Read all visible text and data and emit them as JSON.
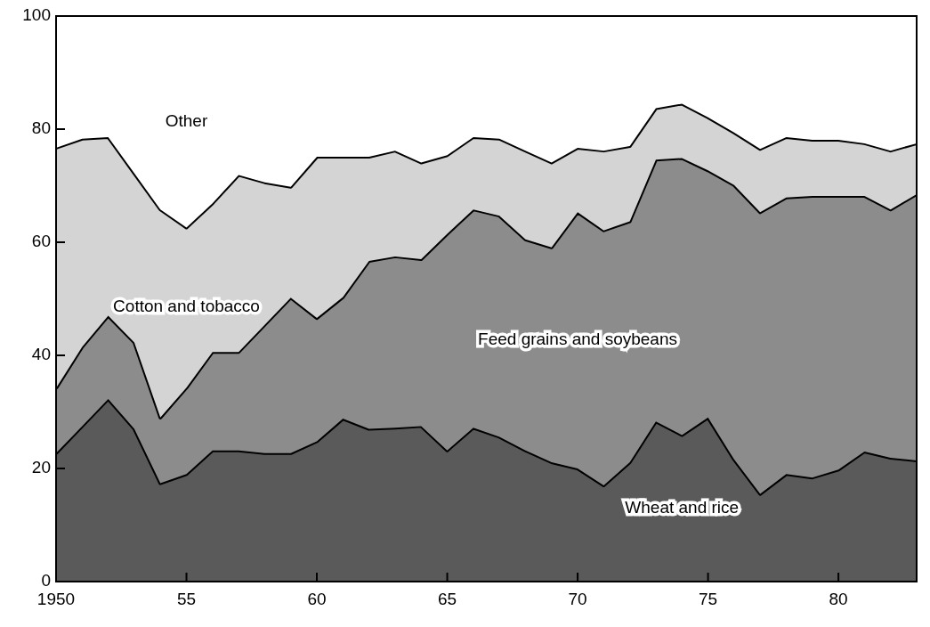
{
  "chart_data": {
    "type": "area",
    "stacked": true,
    "x": [
      1950,
      1951,
      1952,
      1953,
      1954,
      1955,
      1956,
      1957,
      1958,
      1959,
      1960,
      1961,
      1962,
      1963,
      1964,
      1965,
      1966,
      1967,
      1968,
      1969,
      1970,
      1971,
      1972,
      1973,
      1974,
      1975,
      1976,
      1977,
      1978,
      1979,
      1980,
      1981,
      1982,
      1983
    ],
    "xlim": [
      1950,
      1983
    ],
    "xticks": [
      1950,
      {
        "value": 1955,
        "label": "55"
      },
      {
        "value": 1960,
        "label": "60"
      },
      {
        "value": 1965,
        "label": "65"
      },
      {
        "value": 1970,
        "label": "70"
      },
      {
        "value": 1975,
        "label": "75"
      },
      {
        "value": 1980,
        "label": "80"
      }
    ],
    "ylim": [
      0,
      100
    ],
    "yticks": [
      0,
      20,
      40,
      60,
      80,
      100
    ],
    "series": [
      {
        "name": "Wheat and rice",
        "color": "#5a5a5a",
        "values": [
          22.7,
          27.5,
          32.3,
          27,
          17.4,
          19,
          23.2,
          23.2,
          22.7,
          22.7,
          24.8,
          28.8,
          27,
          27.2,
          27.5,
          23.2,
          27.2,
          25.6,
          23.2,
          21.1,
          20,
          17,
          21.1,
          28.3,
          25.9,
          29,
          21.6,
          15.5,
          19,
          18.4,
          19.8,
          23,
          21.9,
          21.4
        ]
      },
      {
        "name": "Feed grains and soybeans",
        "color": "#8c8c8c",
        "values": [
          11.5,
          14,
          14.7,
          15.3,
          11.6,
          15.3,
          17.4,
          17.4,
          22.7,
          27.5,
          21.8,
          21.5,
          29.7,
          30.3,
          29.5,
          38.3,
          38.6,
          39.1,
          37.3,
          38,
          45.3,
          45.1,
          42.6,
          46.3,
          49,
          43.7,
          48.5,
          49.8,
          48.9,
          49.8,
          48.4,
          45.2,
          43.9,
          47.1
        ]
      },
      {
        "name": "Cotton and tobacco",
        "color": "#d4d4d4",
        "values": [
          42.5,
          36.8,
          31.6,
          29.9,
          36.8,
          28.3,
          26.3,
          31.3,
          25.2,
          19.6,
          28.5,
          24.8,
          18.4,
          18.7,
          17.1,
          13.9,
          12.8,
          13.6,
          15.7,
          15,
          11.4,
          14.1,
          13.3,
          9.1,
          9.6,
          9.4,
          9.3,
          11.2,
          10.7,
          9.9,
          9.9,
          9.3,
          10.4,
          9
        ]
      },
      {
        "name": "Other",
        "color": "#ffffff",
        "values": [
          23.3,
          21.7,
          21.4,
          27.8,
          34.2,
          37.4,
          33.1,
          28.1,
          29.4,
          30.2,
          24.9,
          24.9,
          24.9,
          23.8,
          25.9,
          24.6,
          21.4,
          21.7,
          23.8,
          25.9,
          23.3,
          23.8,
          23,
          16.3,
          15.5,
          17.9,
          20.6,
          23.5,
          21.4,
          21.9,
          21.9,
          22.5,
          23.8,
          22.5
        ]
      }
    ]
  }
}
